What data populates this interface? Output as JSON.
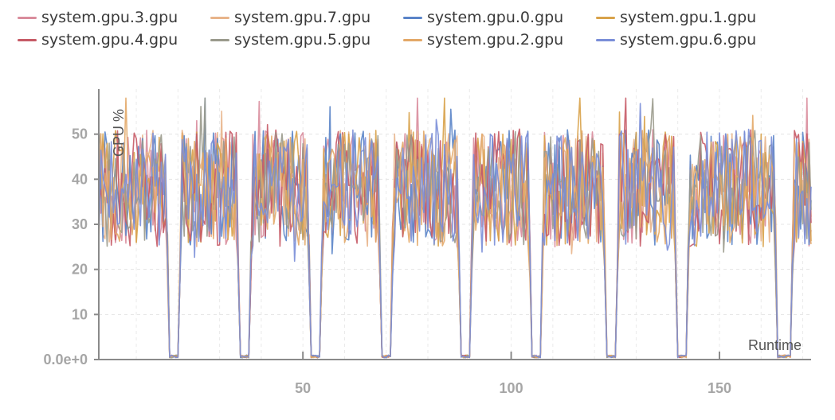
{
  "chart_data": {
    "type": "line",
    "title": "",
    "xlabel": "Runtime",
    "ylabel": "GPU %",
    "xlim": [
      1,
      172
    ],
    "ylim": [
      0,
      60
    ],
    "x_ticks": [
      50,
      100,
      150
    ],
    "y_ticks": [
      0,
      10,
      20,
      30,
      40,
      50
    ],
    "y_tick_labels": [
      "0.0e+0",
      "10",
      "20",
      "30",
      "40",
      "50"
    ],
    "grid": true,
    "legend_position": "top",
    "idle_segments": [
      [
        18,
        20
      ],
      [
        35,
        37
      ],
      [
        52,
        54
      ],
      [
        69,
        71
      ],
      [
        88,
        90
      ],
      [
        105,
        107
      ],
      [
        123,
        125
      ],
      [
        140,
        142
      ],
      [
        164,
        167
      ]
    ],
    "active_mean": 38,
    "series": [
      {
        "name": "system.gpu.3.gpu",
        "color": "#d98c9c",
        "seed": 3
      },
      {
        "name": "system.gpu.7.gpu",
        "color": "#e8b48a",
        "seed": 7
      },
      {
        "name": "system.gpu.0.gpu",
        "color": "#5a84c8",
        "seed": 11
      },
      {
        "name": "system.gpu.1.gpu",
        "color": "#d8a24a",
        "seed": 17
      },
      {
        "name": "system.gpu.4.gpu",
        "color": "#c65a66",
        "seed": 23
      },
      {
        "name": "system.gpu.5.gpu",
        "color": "#9a9a8c",
        "seed": 29
      },
      {
        "name": "system.gpu.2.gpu",
        "color": "#e3a868",
        "seed": 31
      },
      {
        "name": "system.gpu.6.gpu",
        "color": "#7a8ed8",
        "seed": 37
      }
    ]
  }
}
